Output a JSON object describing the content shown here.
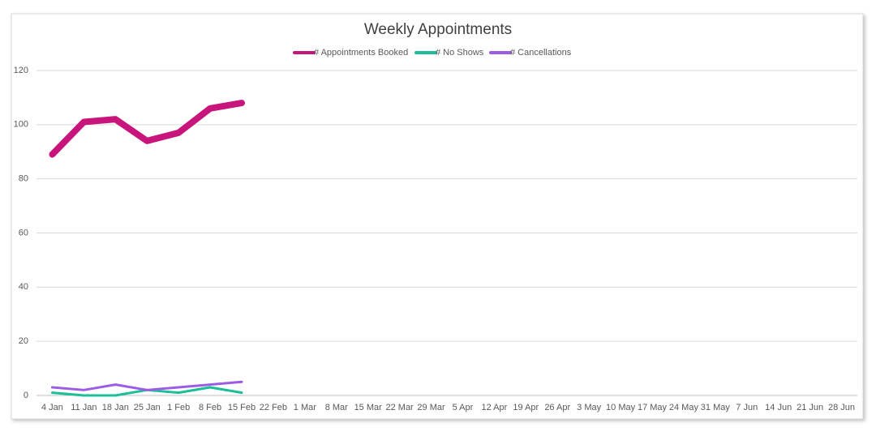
{
  "chart_data": {
    "type": "line",
    "title": "Weekly Appointments",
    "categories": [
      "4 Jan",
      "11 Jan",
      "18 Jan",
      "25 Jan",
      "1 Feb",
      "8 Feb",
      "15 Feb",
      "22 Feb",
      "1 Mar",
      "8 Mar",
      "15 Mar",
      "22 Mar",
      "29 Mar",
      "5 Apr",
      "12 Apr",
      "19 Apr",
      "26 Apr",
      "3 May",
      "10 May",
      "17 May",
      "24 May",
      "31 May",
      "7 Jun",
      "14 Jun",
      "21 Jun",
      "28 Jun"
    ],
    "series": [
      {
        "name": "# Appointments Booked",
        "color": "#c8157b",
        "width": 8,
        "values": [
          89,
          101,
          102,
          94,
          97,
          106,
          108,
          null,
          null,
          null,
          null,
          null,
          null,
          null,
          null,
          null,
          null,
          null,
          null,
          null,
          null,
          null,
          null,
          null,
          null,
          null
        ]
      },
      {
        "name": "# No Shows",
        "color": "#1dbf99",
        "width": 3,
        "values": [
          1,
          0,
          0,
          2,
          1,
          3,
          1,
          null,
          null,
          null,
          null,
          null,
          null,
          null,
          null,
          null,
          null,
          null,
          null,
          null,
          null,
          null,
          null,
          null,
          null,
          null
        ]
      },
      {
        "name": "# Cancellations",
        "color": "#9b5de5",
        "width": 3,
        "values": [
          3,
          2,
          4,
          2,
          3,
          4,
          5,
          null,
          null,
          null,
          null,
          null,
          null,
          null,
          null,
          null,
          null,
          null,
          null,
          null,
          null,
          null,
          null,
          null,
          null,
          null
        ]
      }
    ],
    "ylim": [
      0,
      120
    ],
    "yticks": [
      0,
      20,
      40,
      60,
      80,
      100,
      120
    ],
    "grid": true,
    "legend": "top"
  }
}
